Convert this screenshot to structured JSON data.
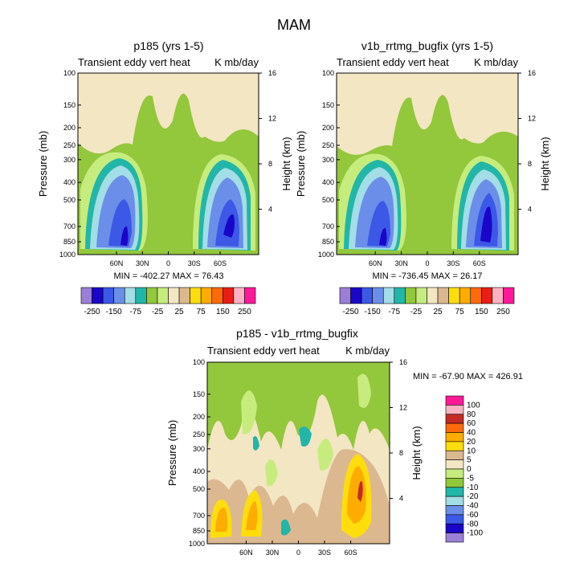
{
  "figure": {
    "title": "MAM"
  },
  "colors": {
    "top": [
      "#9b7fd6",
      "#1a06c8",
      "#3c58e6",
      "#6b8ee8",
      "#a3dde6",
      "#22b6a8",
      "#93c73c",
      "#c6ec7e",
      "#f3e6c3",
      "#dcb890",
      "#fdde0c",
      "#ffac00",
      "#fd6a0b",
      "#e71f16",
      "#fbb3c4",
      "#ff1999"
    ],
    "diff": [
      "#9b7fd6",
      "#1a06c8",
      "#3c58e6",
      "#6b8ee8",
      "#a3dde6",
      "#22b6a8",
      "#93c73c",
      "#c6ec7e",
      "#f3e6c3",
      "#dcb890",
      "#fdde0c",
      "#ffac00",
      "#fd6a0b",
      "#c32b24",
      "#fbb3c4",
      "#ff1999"
    ]
  },
  "chart_data": [
    {
      "type": "heatmap",
      "title": "p185 (yrs 1-5)",
      "subtitle_left": "Transient eddy vert heat",
      "subtitle_right": "K mb/day",
      "ylabel": "Pressure (mb)",
      "ylabel_right": "Height (km)",
      "x_ticks": [
        "60N",
        "30N",
        "0",
        "30S",
        "60S"
      ],
      "y_ticks": [
        "100",
        "150",
        "200",
        "250",
        "300",
        "400",
        "500",
        "700",
        "850",
        "1000"
      ],
      "y2_ticks": [
        "16",
        "12",
        "8",
        "4"
      ],
      "stats": "MIN = -402.27   MAX = 76.43",
      "colorbar_labels": [
        "-250",
        "-150",
        "-75",
        "-25",
        "25",
        "75",
        "150",
        "250"
      ],
      "min": -402.27,
      "max": 76.43
    },
    {
      "type": "heatmap",
      "title": "v1b_rrtmg_bugfix (yrs 1-5)",
      "subtitle_left": "Transient eddy vert heat",
      "subtitle_right": "K mb/day",
      "ylabel": "Pressure (mb)",
      "ylabel_right": "Height (km)",
      "x_ticks": [
        "60N",
        "30N",
        "0",
        "30S",
        "60S"
      ],
      "y_ticks": [
        "100",
        "150",
        "200",
        "250",
        "300",
        "400",
        "500",
        "700",
        "850",
        "1000"
      ],
      "y2_ticks": [
        "16",
        "12",
        "8",
        "4"
      ],
      "stats": "MIN = -736.45   MAX = 26.17",
      "colorbar_labels": [
        "-250",
        "-150",
        "-75",
        "-25",
        "25",
        "75",
        "150",
        "250"
      ],
      "min": -736.45,
      "max": 26.17
    },
    {
      "type": "heatmap",
      "title": "p185 - v1b_rrtmg_bugfix",
      "subtitle_left": "Transient eddy vert heat",
      "subtitle_right": "K mb/day",
      "ylabel": "Pressure (mb)",
      "ylabel_right": "Height (km)",
      "x_ticks": [
        "60N",
        "30N",
        "0",
        "30S",
        "60S"
      ],
      "y_ticks": [
        "100",
        "150",
        "200",
        "250",
        "300",
        "400",
        "500",
        "700",
        "850",
        "1000"
      ],
      "y2_ticks": [
        "16",
        "12",
        "8",
        "4"
      ],
      "stats": "MIN = -67.90   MAX = 426.91",
      "colorbar_labels": [
        "100",
        "80",
        "60",
        "40",
        "20",
        "10",
        "5",
        "0",
        "-5",
        "-10",
        "-20",
        "-40",
        "-60",
        "-80",
        "-100"
      ],
      "min": -67.9,
      "max": 426.91
    }
  ]
}
